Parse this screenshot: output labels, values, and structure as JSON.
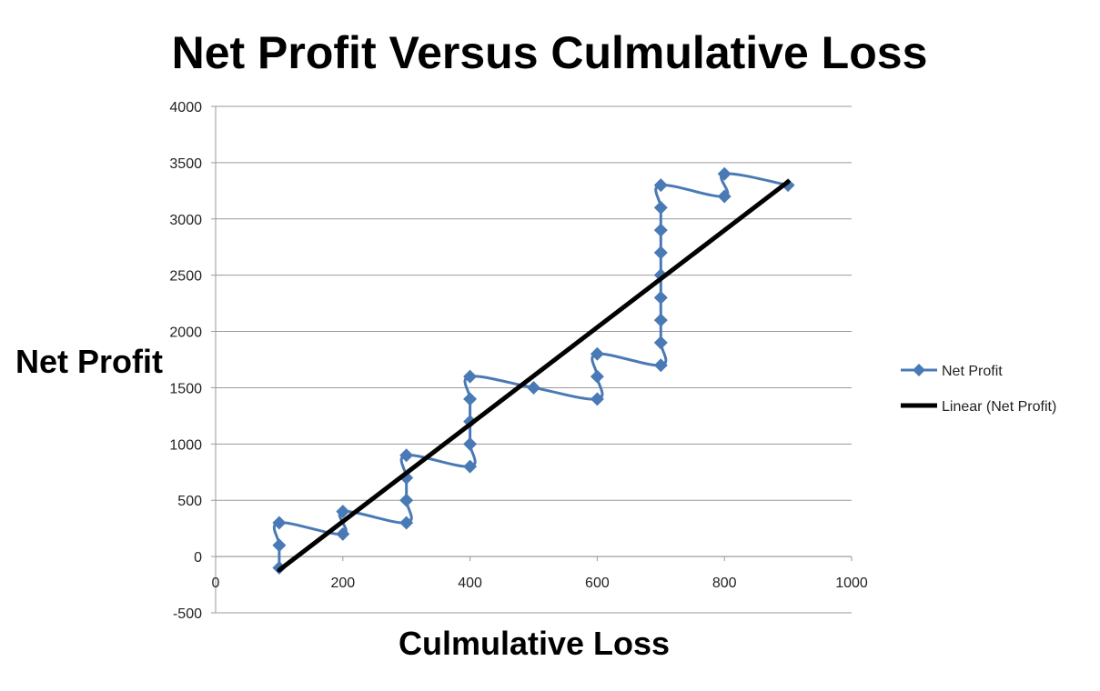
{
  "chart_data": {
    "type": "line",
    "title": "Net Profit Versus Culmulative Loss",
    "xlabel": "Culmulative Loss",
    "ylabel": "Net Profit",
    "xlim": [
      0,
      1000
    ],
    "ylim": [
      -500,
      4000
    ],
    "x_ticks": [
      0,
      200,
      400,
      600,
      800,
      1000
    ],
    "y_ticks": [
      -500,
      0,
      500,
      1000,
      1500,
      2000,
      2500,
      3000,
      3500,
      4000
    ],
    "grid": "horizontal",
    "legend_position": "right",
    "series": [
      {
        "name": "Net Profit",
        "color": "#4a7ab5",
        "marker": "diamond",
        "smooth": true,
        "points": [
          {
            "x": 100,
            "y": -100
          },
          {
            "x": 100,
            "y": 100
          },
          {
            "x": 100,
            "y": 300
          },
          {
            "x": 200,
            "y": 200
          },
          {
            "x": 200,
            "y": 400
          },
          {
            "x": 300,
            "y": 300
          },
          {
            "x": 300,
            "y": 500
          },
          {
            "x": 300,
            "y": 700
          },
          {
            "x": 300,
            "y": 900
          },
          {
            "x": 400,
            "y": 800
          },
          {
            "x": 400,
            "y": 1000
          },
          {
            "x": 400,
            "y": 1200
          },
          {
            "x": 400,
            "y": 1400
          },
          {
            "x": 400,
            "y": 1600
          },
          {
            "x": 500,
            "y": 1500
          },
          {
            "x": 600,
            "y": 1400
          },
          {
            "x": 600,
            "y": 1600
          },
          {
            "x": 600,
            "y": 1800
          },
          {
            "x": 700,
            "y": 1700
          },
          {
            "x": 700,
            "y": 1900
          },
          {
            "x": 700,
            "y": 2100
          },
          {
            "x": 700,
            "y": 2300
          },
          {
            "x": 700,
            "y": 2500
          },
          {
            "x": 700,
            "y": 2700
          },
          {
            "x": 700,
            "y": 2900
          },
          {
            "x": 700,
            "y": 3100
          },
          {
            "x": 700,
            "y": 3300
          },
          {
            "x": 800,
            "y": 3200
          },
          {
            "x": 800,
            "y": 3400
          },
          {
            "x": 900,
            "y": 3300
          }
        ]
      },
      {
        "name": "Linear (Net Profit)",
        "color": "#000000",
        "marker": "none",
        "trendline": true,
        "points": [
          {
            "x": 100,
            "y": -120
          },
          {
            "x": 900,
            "y": 3330
          }
        ]
      }
    ]
  }
}
